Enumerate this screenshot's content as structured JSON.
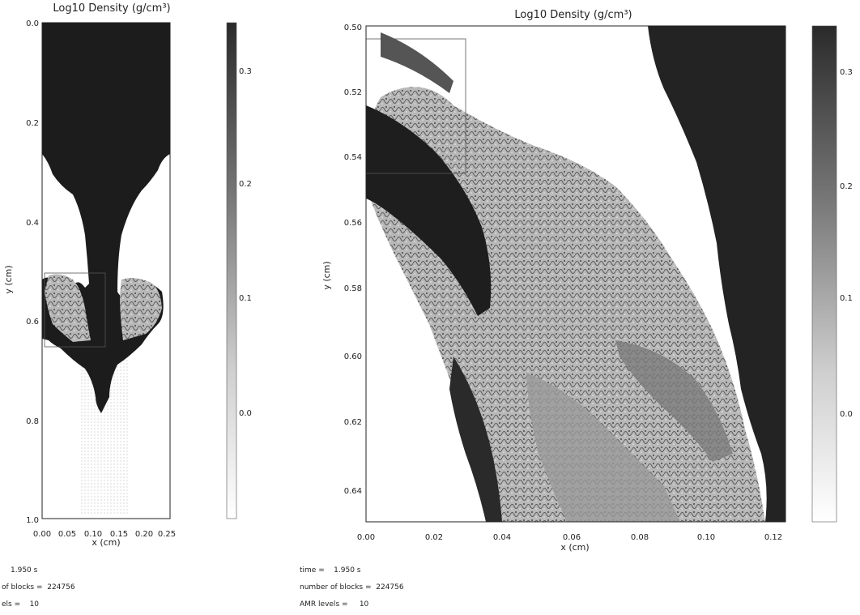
{
  "left_panel": {
    "title": "Log10 Density (g/cm³)",
    "xlabel": "x (cm)",
    "ylabel": "y (cm)",
    "x_ticks": [
      "0.00",
      "0.05",
      "0.10",
      "0.15",
      "0.20",
      "0.25"
    ],
    "y_ticks": [
      "0.0",
      "0.2",
      "0.4",
      "0.6",
      "0.8",
      "1.0"
    ],
    "colorbar_ticks": [
      "0.3",
      "0.2",
      "0.1",
      "0.0"
    ],
    "info": {
      "time_label": "1.950 s",
      "blocks_label": "of blocks =  224756",
      "levels_label": "els =    10"
    }
  },
  "right_panel": {
    "title": "Log10 Density (g/cm³)",
    "xlabel": "x (cm)",
    "ylabel": "y (cm)",
    "x_ticks": [
      "0.00",
      "0.02",
      "0.04",
      "0.06",
      "0.08",
      "0.10",
      "0.12"
    ],
    "y_ticks": [
      "0.50",
      "0.52",
      "0.54",
      "0.56",
      "0.58",
      "0.60",
      "0.62",
      "0.64"
    ],
    "colorbar_ticks": [
      "0.3",
      "0.2",
      "0.1",
      "0.0"
    ],
    "info": {
      "time_label": "time =    1.950 s",
      "blocks_label": "number of blocks =  224756",
      "levels_label": "AMR levels =     10"
    }
  },
  "colors": {
    "dense": "#1a1a1a",
    "light": "#ffffff",
    "mid": "#8a8a8a"
  }
}
